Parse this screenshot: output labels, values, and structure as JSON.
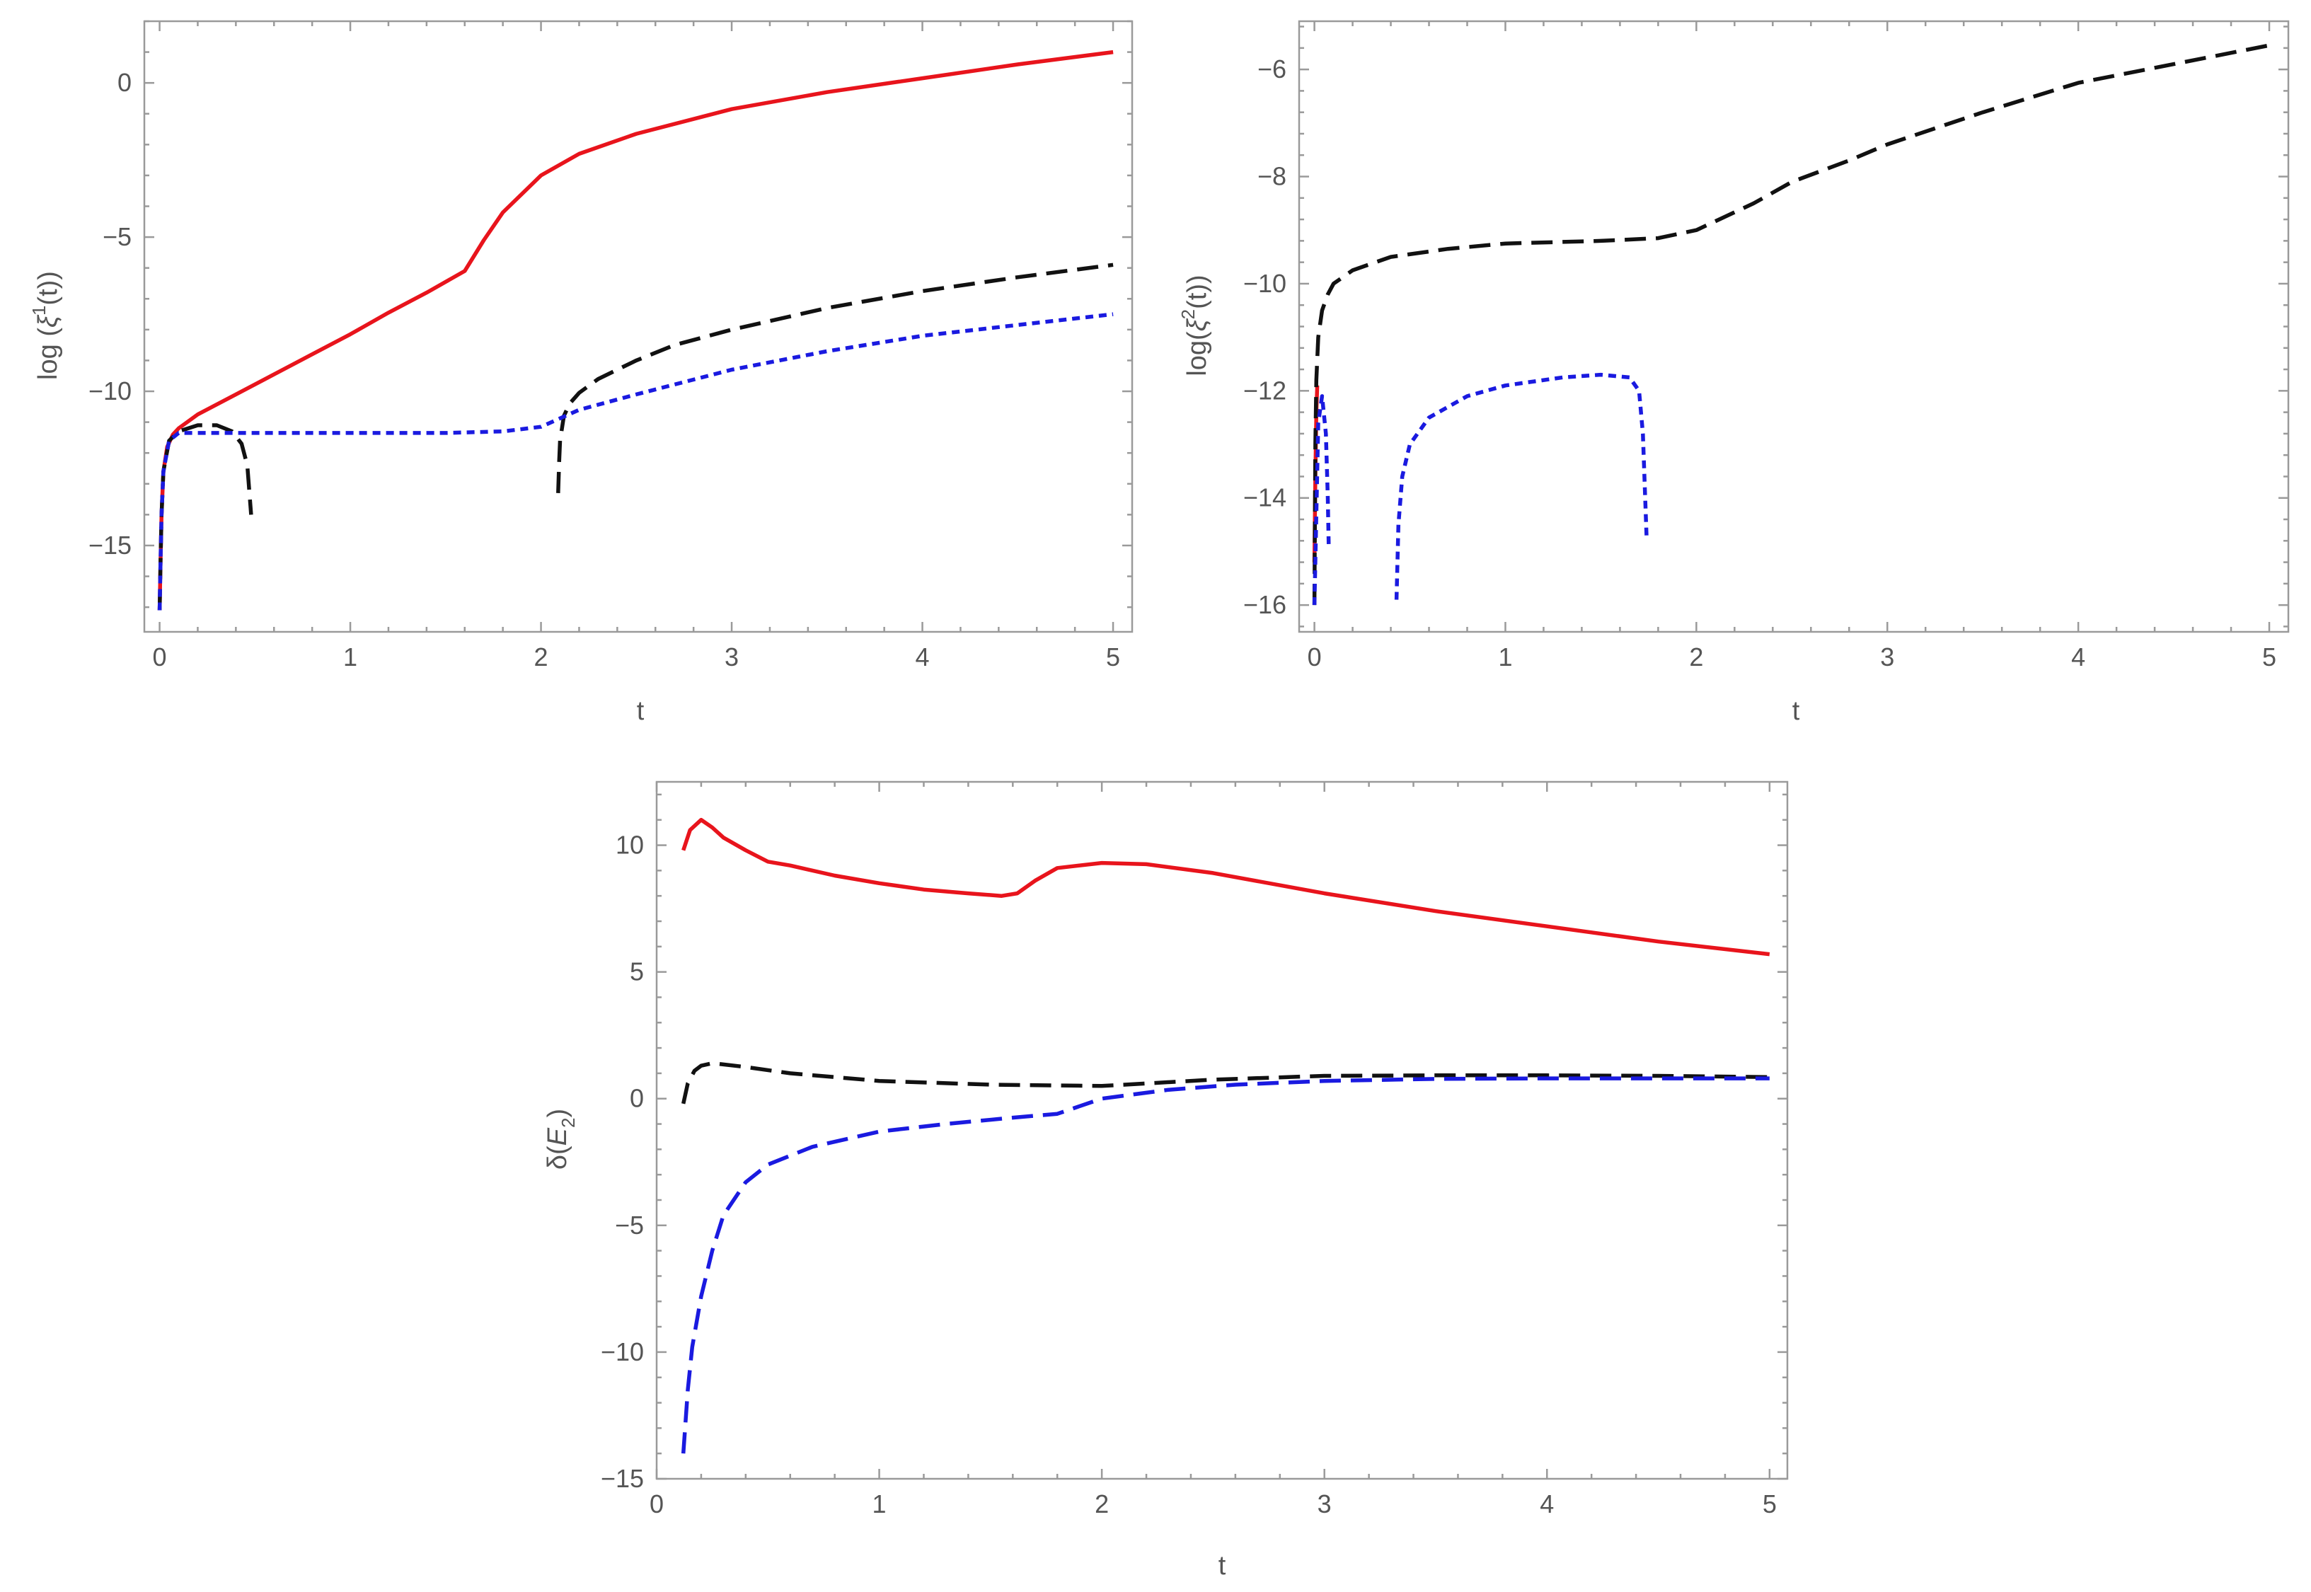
{
  "chart_data": [
    {
      "id": "panel-1",
      "type": "line",
      "xlabel": "t",
      "ylabel_parts": [
        "log (",
        "ξ",
        "1",
        "(t))"
      ],
      "xlim": [
        -0.08,
        5.1
      ],
      "ylim": [
        -17.8,
        2
      ],
      "xticks": [
        0,
        1,
        2,
        3,
        4,
        5
      ],
      "xtick_labels": [
        "0",
        "1",
        "2",
        "3",
        "4",
        "5"
      ],
      "yticks": [
        0,
        -5,
        -10,
        -15
      ],
      "ytick_labels": [
        "0",
        "−5",
        "−10",
        "−15"
      ],
      "series": [
        {
          "name": "red-solid",
          "color": "#e8141c",
          "style": "solid",
          "x": [
            0.0,
            0.005,
            0.01,
            0.02,
            0.04,
            0.07,
            0.1,
            0.2,
            0.4,
            0.6,
            0.8,
            1.0,
            1.2,
            1.4,
            1.6,
            1.7,
            1.8,
            2.0,
            2.2,
            2.5,
            3.0,
            3.5,
            4.0,
            4.5,
            5.0
          ],
          "y": [
            -17.1,
            -15.5,
            -14.0,
            -12.6,
            -11.8,
            -11.4,
            -11.2,
            -10.75,
            -10.1,
            -9.45,
            -8.8,
            -8.15,
            -7.45,
            -6.8,
            -6.1,
            -5.1,
            -4.2,
            -3.0,
            -2.3,
            -1.65,
            -0.85,
            -0.3,
            0.15,
            0.6,
            1.0
          ]
        },
        {
          "name": "black-dashed-a",
          "color": "#111111",
          "style": "dashed",
          "x": [
            0.0,
            0.005,
            0.01,
            0.02,
            0.05,
            0.1,
            0.2,
            0.3,
            0.38,
            0.43,
            0.46,
            0.47,
            0.48
          ],
          "y": [
            -17.1,
            -15.5,
            -14.0,
            -12.6,
            -11.6,
            -11.3,
            -11.1,
            -11.1,
            -11.3,
            -11.7,
            -12.4,
            -13.2,
            -14.0
          ]
        },
        {
          "name": "black-dashed-b",
          "color": "#111111",
          "style": "dashed",
          "x": [
            2.09,
            2.095,
            2.1,
            2.12,
            2.15,
            2.2,
            2.3,
            2.5,
            2.7,
            3.0,
            3.5,
            4.0,
            4.5,
            5.0
          ],
          "y": [
            -13.3,
            -12.3,
            -11.6,
            -10.8,
            -10.4,
            -10.05,
            -9.6,
            -9.0,
            -8.5,
            -8.0,
            -7.3,
            -6.75,
            -6.3,
            -5.9
          ]
        },
        {
          "name": "blue-dotted",
          "color": "#1a1ae0",
          "style": "dotted",
          "x": [
            0.0,
            0.005,
            0.01,
            0.02,
            0.05,
            0.1,
            0.5,
            1.0,
            1.5,
            1.8,
            2.0,
            2.2,
            2.5,
            3.0,
            3.5,
            4.0,
            4.5,
            5.0
          ],
          "y": [
            -17.1,
            -15.5,
            -14.0,
            -12.6,
            -11.6,
            -11.35,
            -11.35,
            -11.35,
            -11.35,
            -11.3,
            -11.15,
            -10.6,
            -10.1,
            -9.3,
            -8.7,
            -8.2,
            -7.85,
            -7.5
          ]
        }
      ]
    },
    {
      "id": "panel-2",
      "type": "line",
      "xlabel": "t",
      "ylabel_parts": [
        "log(",
        "ξ",
        "2",
        "(t))"
      ],
      "xlim": [
        -0.08,
        5.1
      ],
      "ylim": [
        -16.5,
        -5.1
      ],
      "xticks": [
        0,
        1,
        2,
        3,
        4,
        5
      ],
      "xtick_labels": [
        "0",
        "1",
        "2",
        "3",
        "4",
        "5"
      ],
      "yticks": [
        -6,
        -8,
        -10,
        -12,
        -14,
        -16
      ],
      "ytick_labels": [
        "−6",
        "−8",
        "−10",
        "−12",
        "−14",
        "−16"
      ],
      "series": [
        {
          "name": "red-solid",
          "color": "#e8141c",
          "style": "solid",
          "x": [
            0.0,
            0.005,
            0.01,
            0.015
          ],
          "y": [
            -15.2,
            -13.6,
            -12.4,
            -11.9
          ]
        },
        {
          "name": "black-dashed",
          "color": "#111111",
          "style": "dashed",
          "x": [
            0.0,
            0.005,
            0.01,
            0.02,
            0.04,
            0.07,
            0.1,
            0.2,
            0.4,
            0.7,
            1.0,
            1.5,
            1.8,
            2.0,
            2.3,
            2.5,
            2.8,
            3.0,
            3.5,
            4.0,
            4.5,
            5.0
          ],
          "y": [
            -16.0,
            -13.0,
            -11.8,
            -11.0,
            -10.5,
            -10.2,
            -10.0,
            -9.75,
            -9.5,
            -9.35,
            -9.25,
            -9.2,
            -9.15,
            -9.0,
            -8.5,
            -8.1,
            -7.7,
            -7.4,
            -6.8,
            -6.25,
            -5.9,
            -5.55
          ]
        },
        {
          "name": "blue-dotted-a",
          "color": "#1a1ae0",
          "style": "dotted",
          "x": [
            0.0,
            0.02,
            0.04,
            0.06,
            0.07,
            0.075
          ],
          "y": [
            -16.0,
            -12.6,
            -12.1,
            -12.8,
            -14.0,
            -14.9
          ]
        },
        {
          "name": "blue-dotted-b",
          "color": "#1a1ae0",
          "style": "dotted",
          "x": [
            0.43,
            0.44,
            0.46,
            0.5,
            0.6,
            0.8,
            1.0,
            1.3,
            1.5,
            1.65,
            1.7,
            1.72,
            1.73,
            1.74
          ],
          "y": [
            -15.9,
            -14.5,
            -13.6,
            -13.0,
            -12.5,
            -12.1,
            -11.9,
            -11.75,
            -11.7,
            -11.75,
            -12.0,
            -12.8,
            -13.8,
            -14.8
          ]
        }
      ]
    },
    {
      "id": "panel-3",
      "type": "line",
      "xlabel": "t",
      "ylabel_parts": [
        "δ(",
        "E",
        "2",
        ")"
      ],
      "xlim": [
        0,
        5.08
      ],
      "ylim": [
        -15,
        12.5
      ],
      "xticks": [
        0,
        1,
        2,
        3,
        4,
        5
      ],
      "xtick_labels": [
        "0",
        "1",
        "2",
        "3",
        "4",
        "5"
      ],
      "yticks": [
        10,
        5,
        0,
        -5,
        -10,
        -15
      ],
      "ytick_labels": [
        "10",
        "5",
        "0",
        "−5",
        "−10",
        "−15"
      ],
      "series": [
        {
          "name": "red-solid",
          "color": "#e8141c",
          "style": "solid",
          "x": [
            0.12,
            0.15,
            0.2,
            0.25,
            0.3,
            0.4,
            0.5,
            0.6,
            0.8,
            1.0,
            1.2,
            1.4,
            1.55,
            1.62,
            1.7,
            1.8,
            2.0,
            2.2,
            2.5,
            3.0,
            3.5,
            4.0,
            4.5,
            5.0
          ],
          "y": [
            9.8,
            10.6,
            11.0,
            10.7,
            10.3,
            9.8,
            9.35,
            9.2,
            8.8,
            8.5,
            8.25,
            8.1,
            8.0,
            8.1,
            8.6,
            9.1,
            9.3,
            9.25,
            8.9,
            8.1,
            7.4,
            6.8,
            6.2,
            5.7
          ]
        },
        {
          "name": "black-dashed",
          "color": "#111111",
          "style": "dashed",
          "x": [
            0.12,
            0.14,
            0.17,
            0.2,
            0.25,
            0.3,
            0.4,
            0.6,
            1.0,
            1.5,
            2.0,
            2.5,
            3.0,
            3.5,
            4.0,
            4.5,
            5.0
          ],
          "y": [
            -0.2,
            0.6,
            1.1,
            1.3,
            1.4,
            1.35,
            1.25,
            1.0,
            0.7,
            0.55,
            0.5,
            0.75,
            0.9,
            0.92,
            0.92,
            0.9,
            0.85
          ]
        },
        {
          "name": "blue-dashed",
          "color": "#1a1ae0",
          "style": "dashed",
          "x": [
            0.12,
            0.14,
            0.16,
            0.2,
            0.25,
            0.3,
            0.4,
            0.5,
            0.7,
            1.0,
            1.3,
            1.6,
            1.8,
            2.0,
            2.3,
            2.6,
            3.0,
            3.5,
            4.0,
            4.5,
            5.0
          ],
          "y": [
            -14.0,
            -11.5,
            -9.8,
            -7.8,
            -6.0,
            -4.6,
            -3.3,
            -2.6,
            -1.9,
            -1.3,
            -1.0,
            -0.75,
            -0.6,
            0.0,
            0.35,
            0.55,
            0.7,
            0.78,
            0.8,
            0.8,
            0.8
          ]
        }
      ]
    }
  ]
}
